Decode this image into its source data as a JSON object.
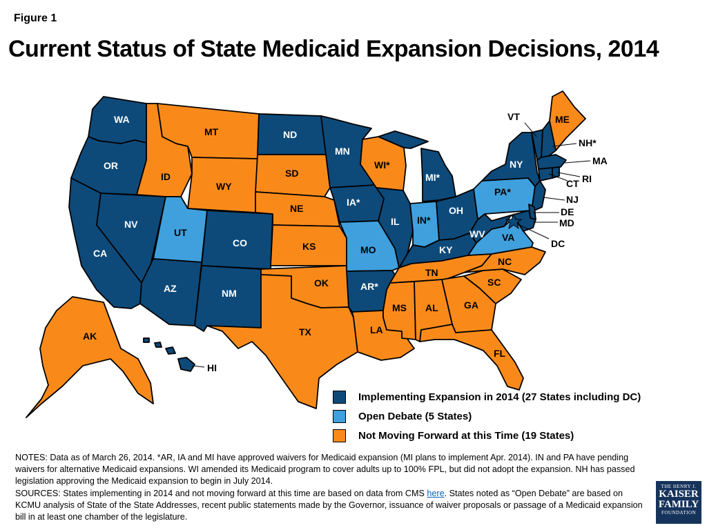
{
  "figure_label": "Figure 1",
  "title": "Current Status of State Medicaid Expansion Decisions, 2014",
  "colors": {
    "implementing": "#0d4a7a",
    "open_debate": "#3fa0dd",
    "not_moving": "#f98a1a"
  },
  "legend": [
    {
      "key": "implementing",
      "label": "Implementing Expansion in 2014 (27 States including DC)"
    },
    {
      "key": "open_debate",
      "label": "Open Debate (5 States)"
    },
    {
      "key": "not_moving",
      "label": "Not Moving Forward at this Time (19 States)"
    }
  ],
  "states": {
    "WA": {
      "label": "WA",
      "status": "implementing"
    },
    "OR": {
      "label": "OR",
      "status": "implementing"
    },
    "CA": {
      "label": "CA",
      "status": "implementing"
    },
    "NV": {
      "label": "NV",
      "status": "implementing"
    },
    "ID": {
      "label": "ID",
      "status": "not_moving"
    },
    "MT": {
      "label": "MT",
      "status": "not_moving"
    },
    "WY": {
      "label": "WY",
      "status": "not_moving"
    },
    "UT": {
      "label": "UT",
      "status": "open_debate"
    },
    "AZ": {
      "label": "AZ",
      "status": "implementing"
    },
    "CO": {
      "label": "CO",
      "status": "implementing"
    },
    "NM": {
      "label": "NM",
      "status": "implementing"
    },
    "ND": {
      "label": "ND",
      "status": "implementing"
    },
    "SD": {
      "label": "SD",
      "status": "not_moving"
    },
    "NE": {
      "label": "NE",
      "status": "not_moving"
    },
    "KS": {
      "label": "KS",
      "status": "not_moving"
    },
    "OK": {
      "label": "OK",
      "status": "not_moving"
    },
    "TX": {
      "label": "TX",
      "status": "not_moving"
    },
    "MN": {
      "label": "MN",
      "status": "implementing"
    },
    "IA": {
      "label": "IA*",
      "status": "implementing"
    },
    "MO": {
      "label": "MO",
      "status": "open_debate"
    },
    "AR": {
      "label": "AR*",
      "status": "implementing"
    },
    "LA": {
      "label": "LA",
      "status": "not_moving"
    },
    "WI": {
      "label": "WI*",
      "status": "not_moving"
    },
    "IL": {
      "label": "IL",
      "status": "implementing"
    },
    "MI": {
      "label": "MI*",
      "status": "implementing"
    },
    "IN": {
      "label": "IN*",
      "status": "open_debate"
    },
    "OH": {
      "label": "OH",
      "status": "implementing"
    },
    "KY": {
      "label": "KY",
      "status": "implementing"
    },
    "TN": {
      "label": "TN",
      "status": "not_moving"
    },
    "MS": {
      "label": "MS",
      "status": "not_moving"
    },
    "AL": {
      "label": "AL",
      "status": "not_moving"
    },
    "GA": {
      "label": "GA",
      "status": "not_moving"
    },
    "FL": {
      "label": "FL",
      "status": "not_moving"
    },
    "SC": {
      "label": "SC",
      "status": "not_moving"
    },
    "NC": {
      "label": "NC",
      "status": "not_moving"
    },
    "VA": {
      "label": "VA",
      "status": "open_debate"
    },
    "WV": {
      "label": "WV",
      "status": "implementing"
    },
    "PA": {
      "label": "PA*",
      "status": "open_debate"
    },
    "NY": {
      "label": "NY",
      "status": "implementing"
    },
    "ME": {
      "label": "ME",
      "status": "not_moving"
    },
    "VT": {
      "label": "VT",
      "status": "implementing"
    },
    "NH": {
      "label": "NH*",
      "status": "implementing"
    },
    "MA": {
      "label": "MA",
      "status": "implementing"
    },
    "RI": {
      "label": "RI",
      "status": "implementing"
    },
    "CT": {
      "label": "CT",
      "status": "implementing"
    },
    "NJ": {
      "label": "NJ",
      "status": "implementing"
    },
    "DE": {
      "label": "DE",
      "status": "implementing"
    },
    "MD": {
      "label": "MD",
      "status": "implementing"
    },
    "DC": {
      "label": "DC",
      "status": "implementing"
    },
    "AK": {
      "label": "AK",
      "status": "not_moving"
    },
    "HI": {
      "label": "HI",
      "status": "implementing"
    }
  },
  "notes": {
    "line1": "NOTES: Data as of March 26, 2014. *AR, IA and MI have approved waivers for Medicaid expansion (MI plans to implement Apr. 2014). IN and PA have pending waivers for alternative Medicaid expansions. WI amended its Medicaid program to cover adults up to 100% FPL, but did not adopt the expansion. NH has passed legislation approving the Medicaid expansion to begin in July 2014.",
    "sources_prefix": "SOURCES: States implementing in 2014 and not moving forward at this time are based on data from CMS ",
    "sources_link": "here",
    "sources_suffix": ". States noted as “Open Debate” are based on KCMU analysis of State of the State Addresses, recent public statements made by the Governor, issuance of waiver proposals or passage of a Medicaid expansion bill in at least one chamber of the legislature."
  },
  "logo": {
    "line1": "THE HENRY J.",
    "line2": "KAISER",
    "line3": "FAMILY",
    "line4": "FOUNDATION"
  }
}
